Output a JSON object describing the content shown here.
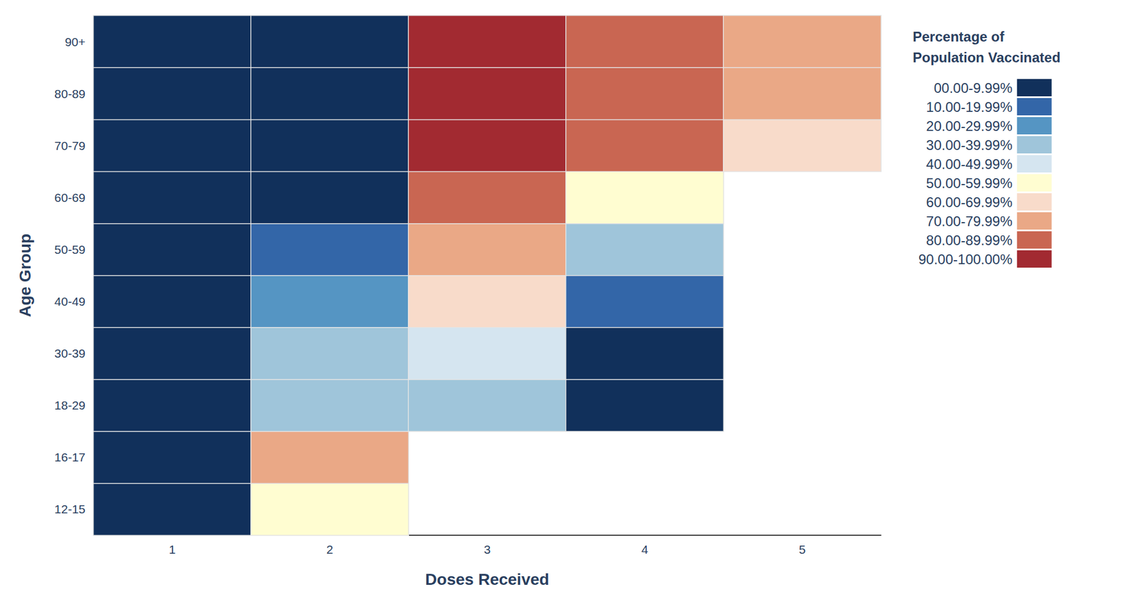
{
  "chart_data": {
    "type": "heatmap",
    "x_label": "Doses Received",
    "y_label": "Age Group",
    "x": [
      1,
      2,
      3,
      4,
      5
    ],
    "y": [
      "12-15",
      "16-17",
      "18-29",
      "30-39",
      "40-49",
      "50-59",
      "60-69",
      "70-79",
      "80-89",
      "90+"
    ],
    "values": [
      [
        5,
        55,
        null,
        null,
        null
      ],
      [
        5,
        75,
        null,
        null,
        null
      ],
      [
        5,
        35,
        35,
        5,
        null
      ],
      [
        5,
        35,
        45,
        5,
        null
      ],
      [
        5,
        25,
        65,
        15,
        null
      ],
      [
        5,
        15,
        75,
        35,
        null
      ],
      [
        3,
        5,
        85,
        55,
        null
      ],
      [
        2,
        4,
        92,
        85,
        65
      ],
      [
        2,
        3,
        95,
        85,
        75
      ],
      [
        2,
        3,
        95,
        85,
        75
      ]
    ],
    "colorbar_title": "Percentage of\nPopulation Vaccinated",
    "colorbar": [
      {
        "min": 90,
        "max": 100,
        "label": "90.00-100.00%",
        "color": "#a22a31"
      },
      {
        "min": 80,
        "max": 89.99,
        "label": "80.00-89.99%",
        "color": "#c96652"
      },
      {
        "min": 70,
        "max": 79.99,
        "label": "70.00-79.99%",
        "color": "#eaa886"
      },
      {
        "min": 60,
        "max": 69.99,
        "label": "60.00-69.99%",
        "color": "#f8dbca"
      },
      {
        "min": 50,
        "max": 59.99,
        "label": "50.00-59.99%",
        "color": "#fffdd1"
      },
      {
        "min": 40,
        "max": 49.99,
        "label": "40.00-49.99%",
        "color": "#d5e5f0"
      },
      {
        "min": 30,
        "max": 39.99,
        "label": "30.00-39.99%",
        "color": "#9fc5da"
      },
      {
        "min": 20,
        "max": 29.99,
        "label": "20.00-29.99%",
        "color": "#5595c3"
      },
      {
        "min": 10,
        "max": 19.99,
        "label": "10.00-19.99%",
        "color": "#3366a8"
      },
      {
        "min": 0,
        "max": 9.99,
        "label": "00.00-9.99%",
        "color": "#11305b"
      }
    ]
  }
}
